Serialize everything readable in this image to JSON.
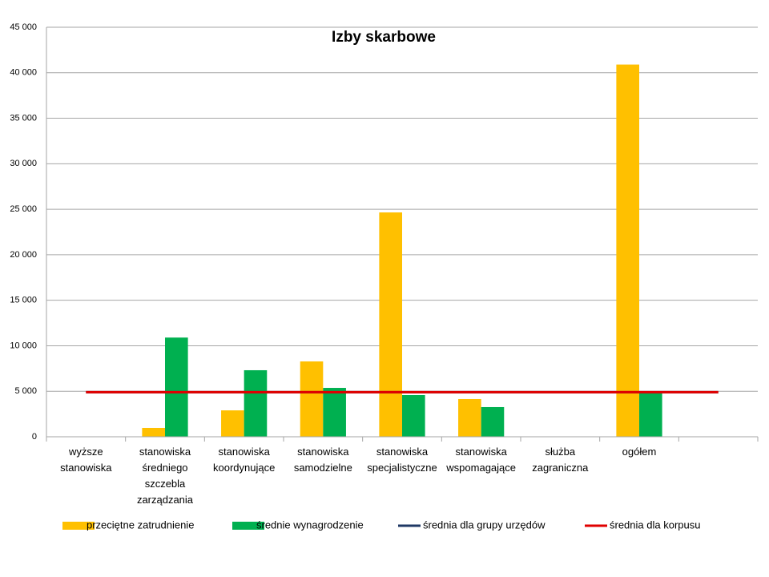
{
  "chart_data": {
    "type": "bar",
    "title": "Izby skarbowe",
    "categories": [
      "wyższe stanowiska",
      "stanowiska średniego szczebla zarządzania",
      "stanowiska koordynujące",
      "stanowiska samodzielne",
      "stanowiska specjalistyczne",
      "stanowiska wspomagające",
      "służba zagraniczna",
      "ogółem",
      null
    ],
    "series": [
      {
        "name": "przeciętne zatrudnienie",
        "color": "#ffc000",
        "type": "bar",
        "values": [
          null,
          970,
          2900,
          8280,
          24650,
          4140,
          null,
          40900,
          null
        ]
      },
      {
        "name": "średnie wynagrodzenie",
        "color": "#00b050",
        "type": "bar",
        "values": [
          null,
          10900,
          7310,
          5370,
          4580,
          3260,
          null,
          4930,
          null
        ]
      },
      {
        "name": "średnia dla grupy urzędów",
        "color": "#1f3864",
        "type": "line",
        "values": [
          4900,
          4900,
          4900,
          4900,
          4900,
          4900,
          4900,
          4900,
          4900
        ]
      },
      {
        "name": "średnia dla korpusu",
        "color": "#e00000",
        "type": "line",
        "values": [
          4900,
          4900,
          4900,
          4900,
          4900,
          4900,
          4900,
          4900,
          4900
        ]
      }
    ],
    "ylim": [
      0,
      45000
    ],
    "yticks": [
      0,
      {
        "value": 5000,
        "label": "5 000"
      },
      {
        "value": 10000,
        "label": "10 000"
      },
      {
        "value": 15000,
        "label": "15 000"
      },
      {
        "value": 20000,
        "label": "20 000"
      },
      {
        "value": 25000,
        "label": "25 000"
      },
      {
        "value": 30000,
        "label": "30 000"
      },
      {
        "value": 35000,
        "label": "35 000"
      },
      {
        "value": 40000,
        "label": "40 000"
      },
      {
        "value": 45000,
        "label": "45 000"
      }
    ],
    "grid": true,
    "legend": "bottom"
  }
}
